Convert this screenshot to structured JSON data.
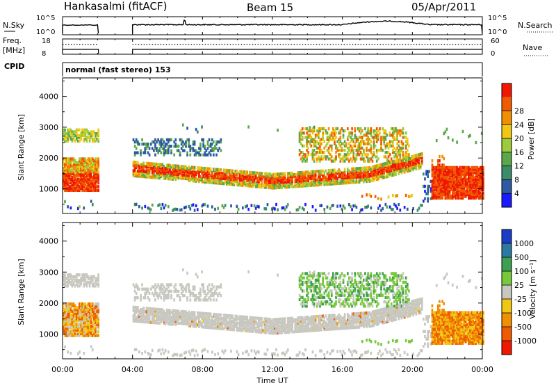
{
  "header": {
    "station": "Hankasalmi (fitACF)",
    "beam": "Beam 15",
    "date": "05/Apr/2011"
  },
  "strip_labels": {
    "nsky": "N.Sky",
    "nsky_top": "10^5",
    "nsky_bottom": "10^0",
    "nsearch": "N.Search",
    "nsearch_top": "10^5",
    "nsearch_bottom": "10^0",
    "freq": "Freq.",
    "freq_unit": "[MHz]",
    "freq_top": "18",
    "freq_bottom": "8",
    "nave": "Nave",
    "nave_top": "60",
    "nave_bottom": "0",
    "cpid": "CPID",
    "cpid_text": "normal (fast stereo) 153"
  },
  "chart_data": [
    {
      "type": "heatmap",
      "name": "power",
      "ylabel": "Slant Range [km]",
      "yticks": [
        "1000",
        "2000",
        "3000",
        "4000"
      ],
      "ylim": [
        200,
        4600
      ],
      "xlim": [
        0,
        24
      ],
      "colorbar": {
        "label": "Power [dB]",
        "ticks": [
          "4",
          "8",
          "12",
          "16",
          "20",
          "24",
          "28"
        ],
        "colors": [
          "#1a1aff",
          "#2d5aa0",
          "#3b8c6a",
          "#5aa84a",
          "#9ccc3c",
          "#f0c814",
          "#f09000",
          "#f05a00",
          "#f01800"
        ]
      }
    },
    {
      "type": "heatmap",
      "name": "velocity",
      "ylabel": "Slant Range [km]",
      "yticks": [
        "1000",
        "2000",
        "3000",
        "4000"
      ],
      "ylim": [
        200,
        4600
      ],
      "xlim": [
        0,
        24
      ],
      "colorbar": {
        "label": "Velocity [m s⁻¹]",
        "ticks": [
          "1000",
          "500",
          "100",
          "25",
          "-25",
          "-100",
          "-500",
          "-1000"
        ],
        "colors": [
          "#1a3cc8",
          "#2d78a0",
          "#3ca050",
          "#78c83c",
          "#c8c8c0",
          "#f0c814",
          "#f09000",
          "#f05a00",
          "#f01800"
        ]
      }
    }
  ],
  "xaxis": {
    "ticks": [
      "00:00",
      "04:00",
      "08:00",
      "12:00",
      "16:00",
      "20:00",
      "00:00"
    ],
    "label": "Time UT"
  }
}
